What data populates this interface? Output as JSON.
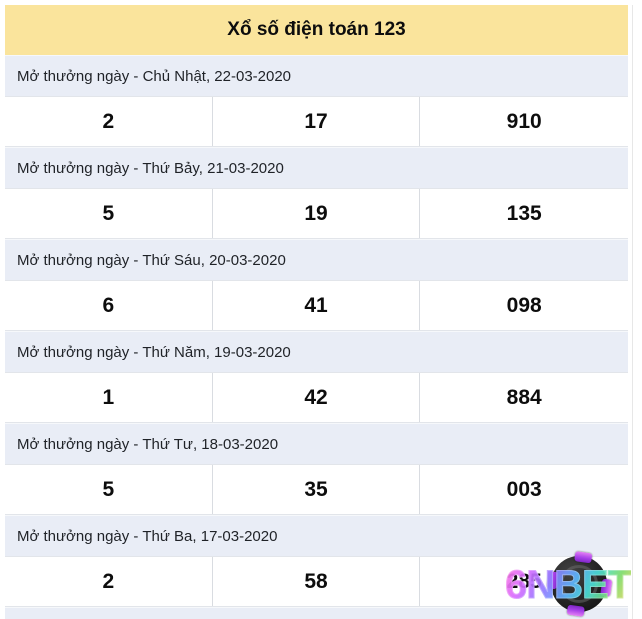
{
  "title": "Xổ số điện toán 123",
  "colors": {
    "header_bg": "#FAE49C",
    "date_row_bg": "#E9EDF6",
    "result_row_bg": "#FFFFFF",
    "cell_border": "#D9DCE1",
    "number_text": "#0D0D0D",
    "watermark_chip": "#1B1B1B",
    "watermark_tab_purple": "#A53AE8"
  },
  "draws": [
    {
      "date_label": "Mở thưởng ngày - Chủ Nhật, 22-03-2020",
      "numbers": [
        "2",
        "17",
        "910"
      ]
    },
    {
      "date_label": "Mở thưởng ngày - Thứ Bảy, 21-03-2020",
      "numbers": [
        "5",
        "19",
        "135"
      ]
    },
    {
      "date_label": "Mở thưởng ngày - Thứ Sáu, 20-03-2020",
      "numbers": [
        "6",
        "41",
        "098"
      ]
    },
    {
      "date_label": "Mở thưởng ngày - Thứ Năm, 19-03-2020",
      "numbers": [
        "1",
        "42",
        "884"
      ]
    },
    {
      "date_label": "Mở thưởng ngày - Thứ Tư, 18-03-2020",
      "numbers": [
        "5",
        "35",
        "003"
      ]
    },
    {
      "date_label": "Mở thưởng ngày - Thứ Ba, 17-03-2020",
      "numbers": [
        "2",
        "58",
        "285"
      ]
    }
  ],
  "watermark": {
    "text": "6NBET"
  }
}
